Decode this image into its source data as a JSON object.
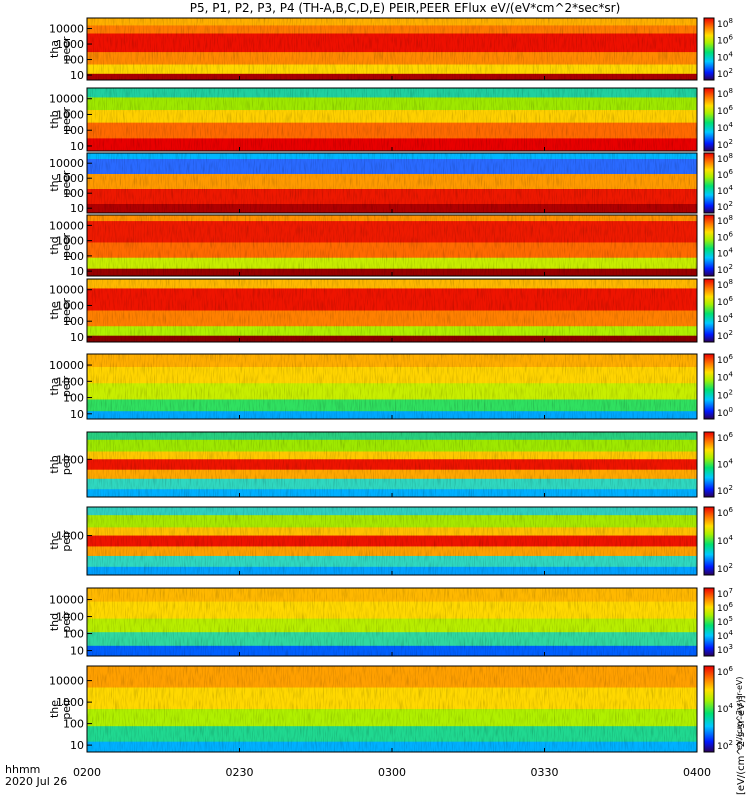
{
  "title": "P5, P1, P2, P3, P4 (TH-A,B,C,D,E) PEIR,PEER EFlux eV/(eV*cm^2*sec*sr)",
  "time_axis": {
    "row_label": "hhmm",
    "date_label": "2020 Jul 26",
    "ticks": [
      "0200",
      "0230",
      "0300",
      "0330",
      "0400"
    ]
  },
  "colorbar_unit_label": "[eV/(cm^2-s-sr-eV)]",
  "chart_data": [
    {
      "type": "heatmap",
      "panel": "tha peer",
      "ylabel_lines": [
        "tha",
        "peer"
      ],
      "yticks": [
        "10",
        "100",
        "1000",
        "10000"
      ],
      "zticks": [
        "10^2",
        "10^4",
        "10^6",
        "10^8"
      ],
      "zlabel": "eV/(cm^2-s-sr-eV)",
      "xrange": [
        "0200",
        "0400"
      ]
    },
    {
      "type": "heatmap",
      "panel": "thb peer",
      "ylabel_lines": [
        "thb",
        "peer"
      ],
      "yticks": [
        "10",
        "100",
        "1000",
        "10000"
      ],
      "zticks": [
        "10^2",
        "10^4",
        "10^6",
        "10^8"
      ],
      "zlabel": "eV/(cm^2-s-sr-eV)",
      "xrange": [
        "0200",
        "0400"
      ]
    },
    {
      "type": "heatmap",
      "panel": "thc peer",
      "ylabel_lines": [
        "thc",
        "peer"
      ],
      "yticks": [
        "10",
        "100",
        "1000",
        "10000"
      ],
      "zticks": [
        "10^2",
        "10^4",
        "10^6",
        "10^8"
      ],
      "zlabel": "eV/(cm^2-s-sr-eV)",
      "xrange": [
        "0200",
        "0400"
      ]
    },
    {
      "type": "heatmap",
      "panel": "thd peer",
      "ylabel_lines": [
        "thd",
        "peer"
      ],
      "yticks": [
        "10",
        "100",
        "1000",
        "10000"
      ],
      "zticks": [
        "10^2",
        "10^4",
        "10^6",
        "10^8"
      ],
      "zlabel": "eV/(cm^2-s-sr-eV)",
      "xrange": [
        "0200",
        "0400"
      ]
    },
    {
      "type": "heatmap",
      "panel": "the peer",
      "ylabel_lines": [
        "the",
        "peer"
      ],
      "yticks": [
        "10",
        "100",
        "1000",
        "10000"
      ],
      "zticks": [
        "10^2",
        "10^4",
        "10^6",
        "10^8"
      ],
      "zlabel": "eV/(cm^2-s-sr-eV)",
      "xrange": [
        "0200",
        "0400"
      ]
    },
    {
      "type": "heatmap",
      "panel": "tha peir",
      "ylabel_lines": [
        "tha",
        "peir"
      ],
      "yticks": [
        "10",
        "100",
        "1000",
        "10000"
      ],
      "zticks": [
        "10^0",
        "10^2",
        "10^4",
        "10^6"
      ],
      "zlabel": "eV/(cm^2-s-sr-eV)",
      "xrange": [
        "0200",
        "0400"
      ]
    },
    {
      "type": "heatmap",
      "panel": "thb peir",
      "ylabel_lines": [
        "thb",
        "peir"
      ],
      "yticks": [
        "1000"
      ],
      "zticks": [
        "10^2",
        "10^4",
        "10^6"
      ],
      "zlabel": "eV/(cm^2-s-sr-eV)",
      "xrange": [
        "0200",
        "0400"
      ]
    },
    {
      "type": "heatmap",
      "panel": "thc peir",
      "ylabel_lines": [
        "thc",
        "peir"
      ],
      "yticks": [
        "1000"
      ],
      "zticks": [
        "10^2",
        "10^4",
        "10^6"
      ],
      "zlabel": "eV/(cm^2-s-sr-eV)",
      "xrange": [
        "0200",
        "0400"
      ]
    },
    {
      "type": "heatmap",
      "panel": "thd peir",
      "ylabel_lines": [
        "thd",
        "peir"
      ],
      "yticks": [
        "10",
        "100",
        "1000",
        "10000"
      ],
      "zticks": [
        "10^3",
        "10^4",
        "10^5",
        "10^6",
        "10^7"
      ],
      "zlabel": "eV/(cm^2-s-sr-eV)",
      "xrange": [
        "0200",
        "0400"
      ]
    },
    {
      "type": "heatmap",
      "panel": "the peir",
      "ylabel_lines": [
        "the",
        "peir"
      ],
      "yticks": [
        "10",
        "100",
        "1000",
        "10000"
      ],
      "zticks": [
        "10^2",
        "10^4",
        "10^6"
      ],
      "zlabel": "eV/(cm^2-s-sr-eV)",
      "xrange": [
        "0200",
        "0400"
      ]
    }
  ]
}
